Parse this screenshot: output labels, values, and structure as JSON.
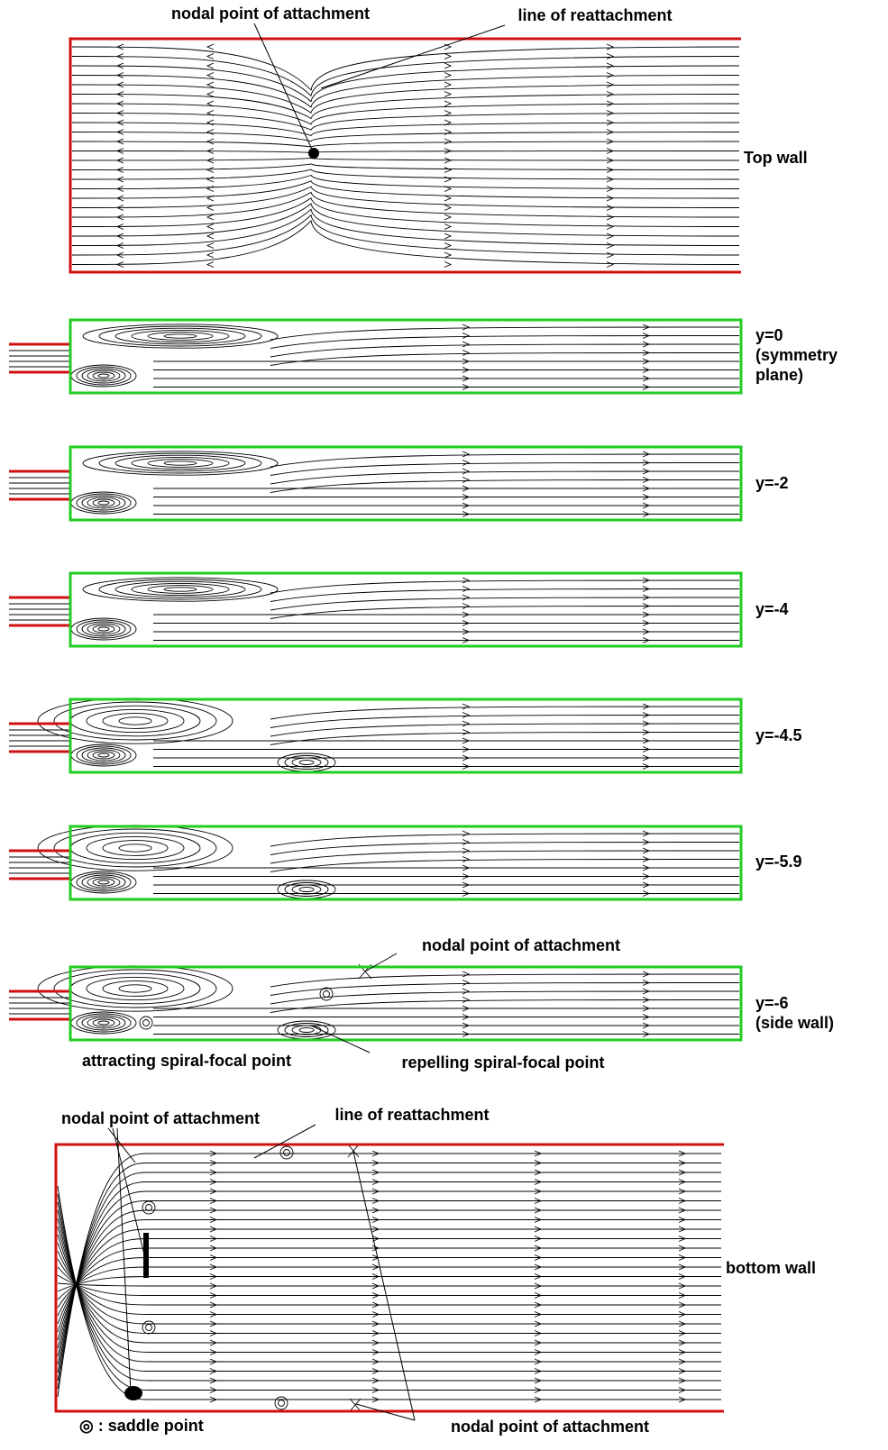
{
  "top_wall": {
    "label": "Top wall",
    "annotations": [
      "nodal point of attachment",
      "line of reattachment"
    ]
  },
  "planes": [
    {
      "label_lines": [
        "y=0",
        "(symmetry",
        "plane)"
      ]
    },
    {
      "label_lines": [
        "y=-2"
      ]
    },
    {
      "label_lines": [
        "y=-4"
      ]
    },
    {
      "label_lines": [
        "y=-4.5"
      ]
    },
    {
      "label_lines": [
        "y=-5.9"
      ]
    },
    {
      "label_lines": [
        "y=-6",
        "(side wall)"
      ],
      "annotations": [
        "nodal point of attachment",
        "attracting spiral-focal point",
        "repelling spiral-focal point"
      ]
    }
  ],
  "bottom_wall": {
    "label": "bottom wall",
    "annotations": [
      "nodal point of attachment",
      "line of reattachment",
      "nodal point of attachment"
    ],
    "legend": "◎ : saddle point"
  }
}
